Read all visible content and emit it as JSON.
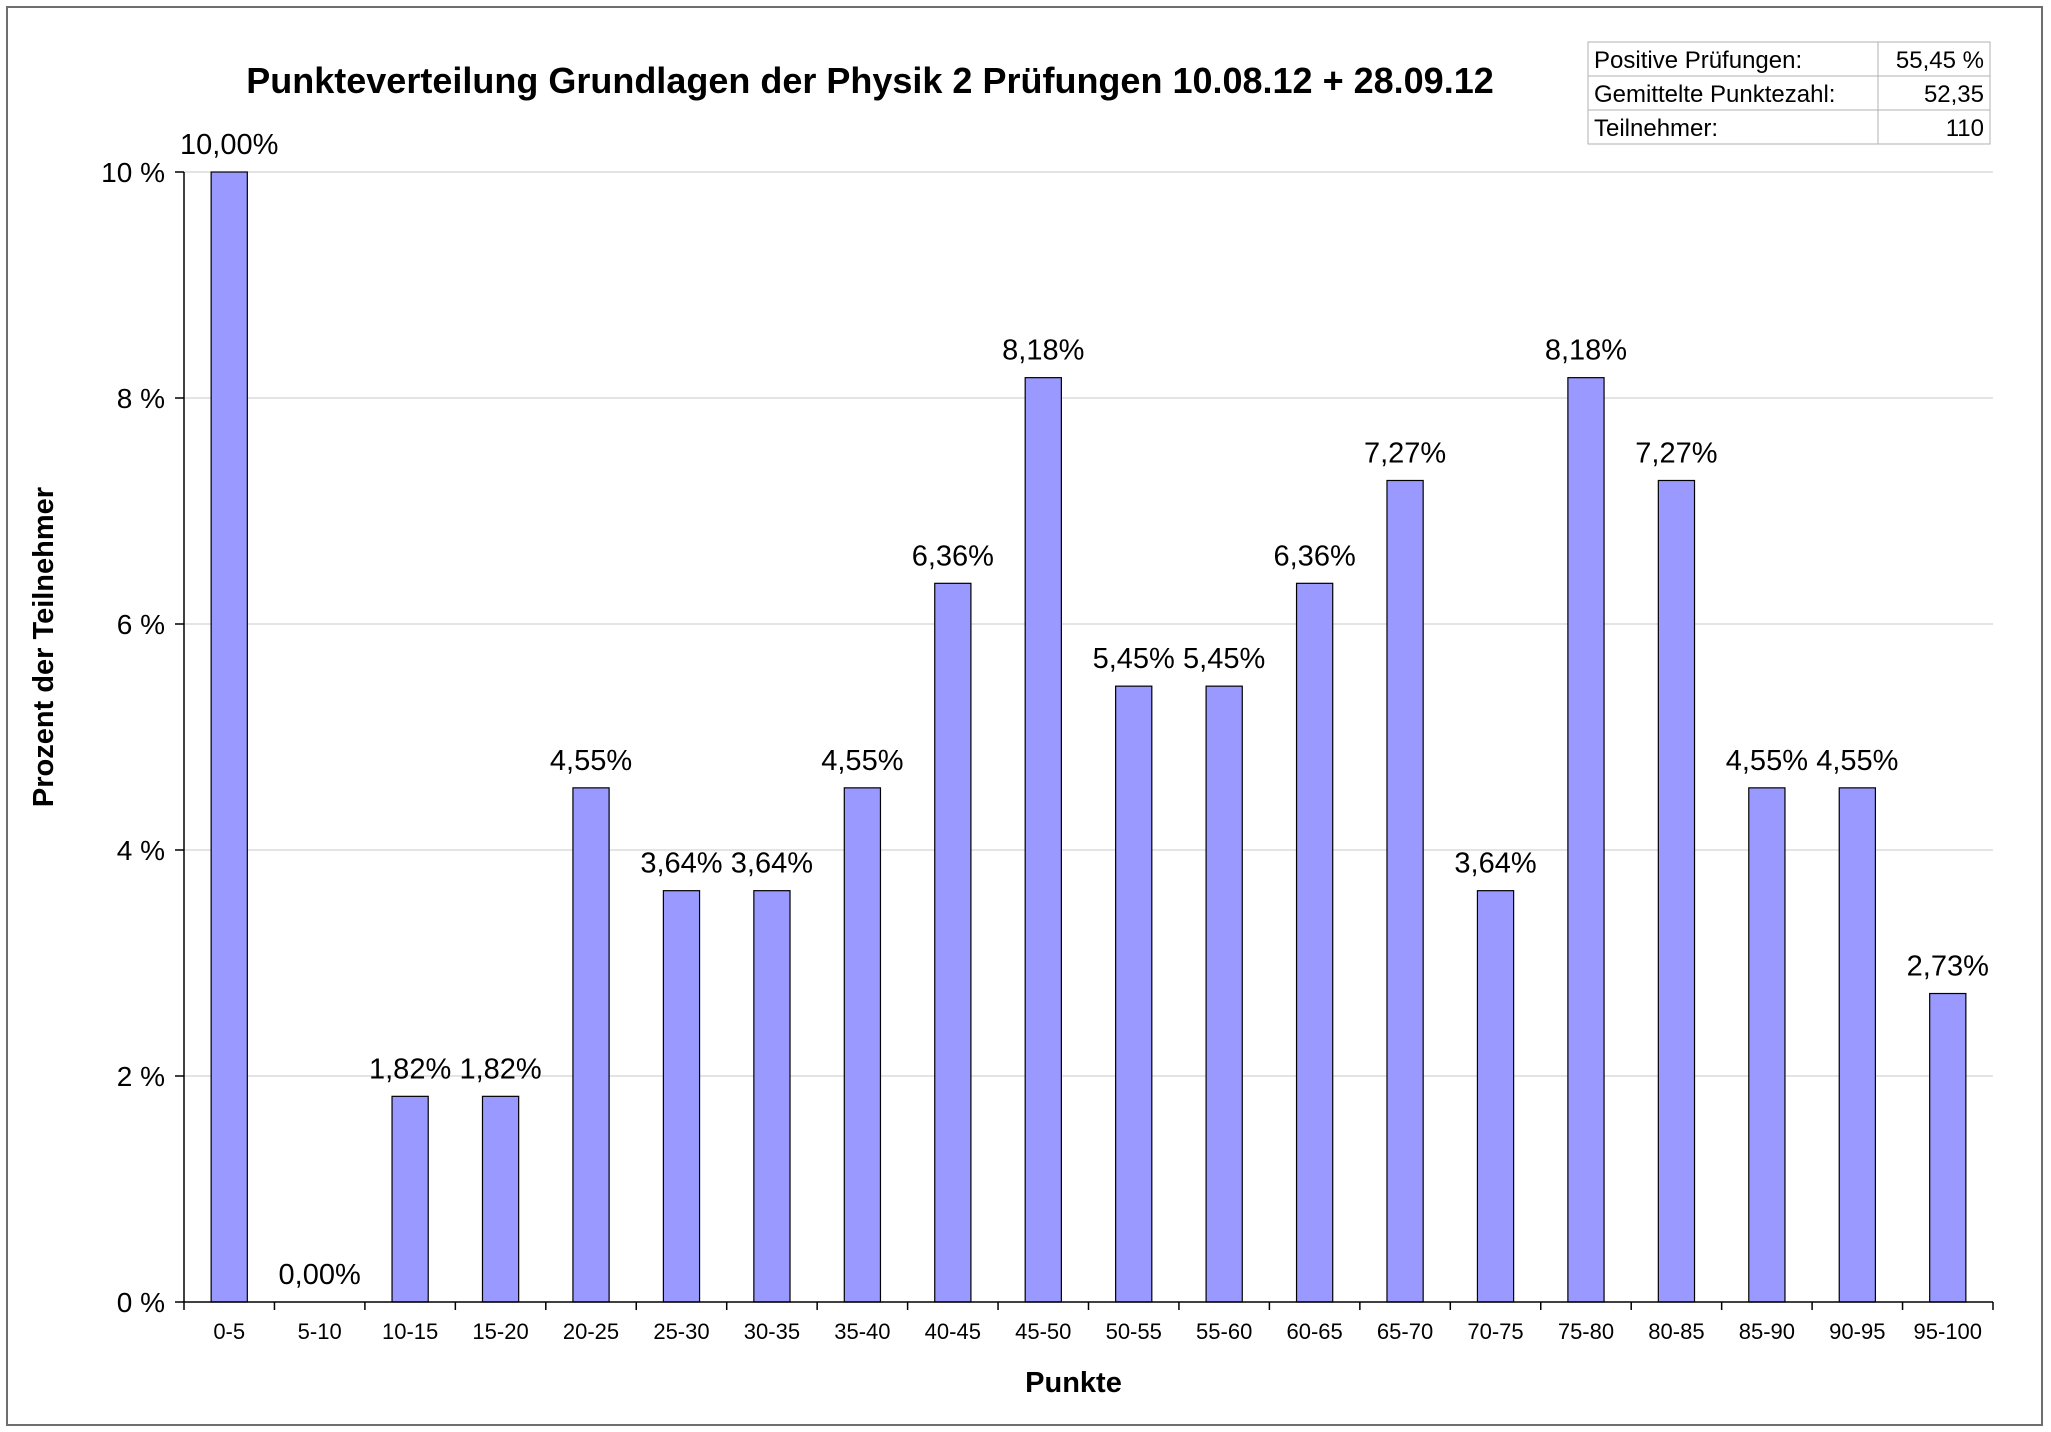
{
  "chart_data": {
    "type": "bar",
    "title": "Punkteverteilung Grundlagen der Physik 2 Prüfungen 10.08.12 + 28.09.12",
    "xlabel": "Punkte",
    "ylabel": "Prozent der Teilnehmer",
    "ylim": [
      0,
      10
    ],
    "yticks": [
      {
        "value": 0,
        "label": "0 %"
      },
      {
        "value": 2,
        "label": "2 %"
      },
      {
        "value": 4,
        "label": "4 %"
      },
      {
        "value": 6,
        "label": "6 %"
      },
      {
        "value": 8,
        "label": "8 %"
      },
      {
        "value": 10,
        "label": "10 %"
      }
    ],
    "grid": true,
    "legend": "none",
    "bar_color": "#9999ff",
    "categories": [
      "0-5",
      "5-10",
      "10-15",
      "15-20",
      "20-25",
      "25-30",
      "30-35",
      "35-40",
      "40-45",
      "45-50",
      "50-55",
      "55-60",
      "60-65",
      "65-70",
      "70-75",
      "75-80",
      "80-85",
      "85-90",
      "90-95",
      "95-100"
    ],
    "values": [
      10.0,
      0.0,
      1.82,
      1.82,
      4.55,
      3.64,
      3.64,
      4.55,
      6.36,
      8.18,
      5.45,
      5.45,
      6.36,
      7.27,
      3.64,
      8.18,
      7.27,
      4.55,
      4.55,
      2.73
    ],
    "data_labels": [
      "10,00%",
      "0,00%",
      "1,82%",
      "1,82%",
      "4,55%",
      "3,64%",
      "3,64%",
      "4,55%",
      "6,36%",
      "8,18%",
      "5,45%",
      "5,45%",
      "6,36%",
      "7,27%",
      "3,64%",
      "8,18%",
      "7,27%",
      "4,55%",
      "4,55%",
      "2,73%"
    ],
    "info_table": [
      {
        "label": "Positive Prüfungen:",
        "value": "55,45 %"
      },
      {
        "label": "Gemittelte Punktezahl:",
        "value": "52,35"
      },
      {
        "label": "Teilnehmer:",
        "value": "110"
      }
    ]
  }
}
